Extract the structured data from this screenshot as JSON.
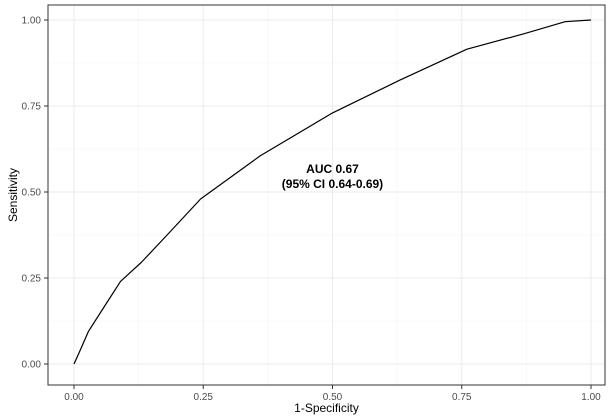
{
  "chart_data": {
    "type": "line",
    "title": "",
    "xlabel": "1-Specificity",
    "ylabel": "Sensitivity",
    "xlim": [
      0,
      1
    ],
    "ylim": [
      0,
      1
    ],
    "x_ticks": [
      "0.00",
      "0.25",
      "0.50",
      "0.75",
      "1.00"
    ],
    "y_ticks": [
      "0.00",
      "0.25",
      "0.50",
      "0.75",
      "1.00"
    ],
    "grid": true,
    "legend": "none",
    "series": [
      {
        "x": [
          0.0,
          0.012,
          0.028,
          0.06,
          0.09,
          0.13,
          0.18,
          0.245,
          0.36,
          0.5,
          0.63,
          0.76,
          0.87,
          0.95,
          1.0
        ],
        "y": [
          0.0,
          0.04,
          0.095,
          0.17,
          0.24,
          0.295,
          0.375,
          0.48,
          0.605,
          0.73,
          0.825,
          0.915,
          0.96,
          0.995,
          1.0
        ]
      }
    ],
    "annotation": {
      "line1": "AUC 0.67",
      "line2": "(95% CI 0.64-0.69)",
      "x": 0.5,
      "y": 0.555
    },
    "colors": {
      "line": "#000000",
      "grid": "#ebebeb",
      "panel_border": "#333333",
      "tick_text": "#4d4d4d"
    }
  }
}
